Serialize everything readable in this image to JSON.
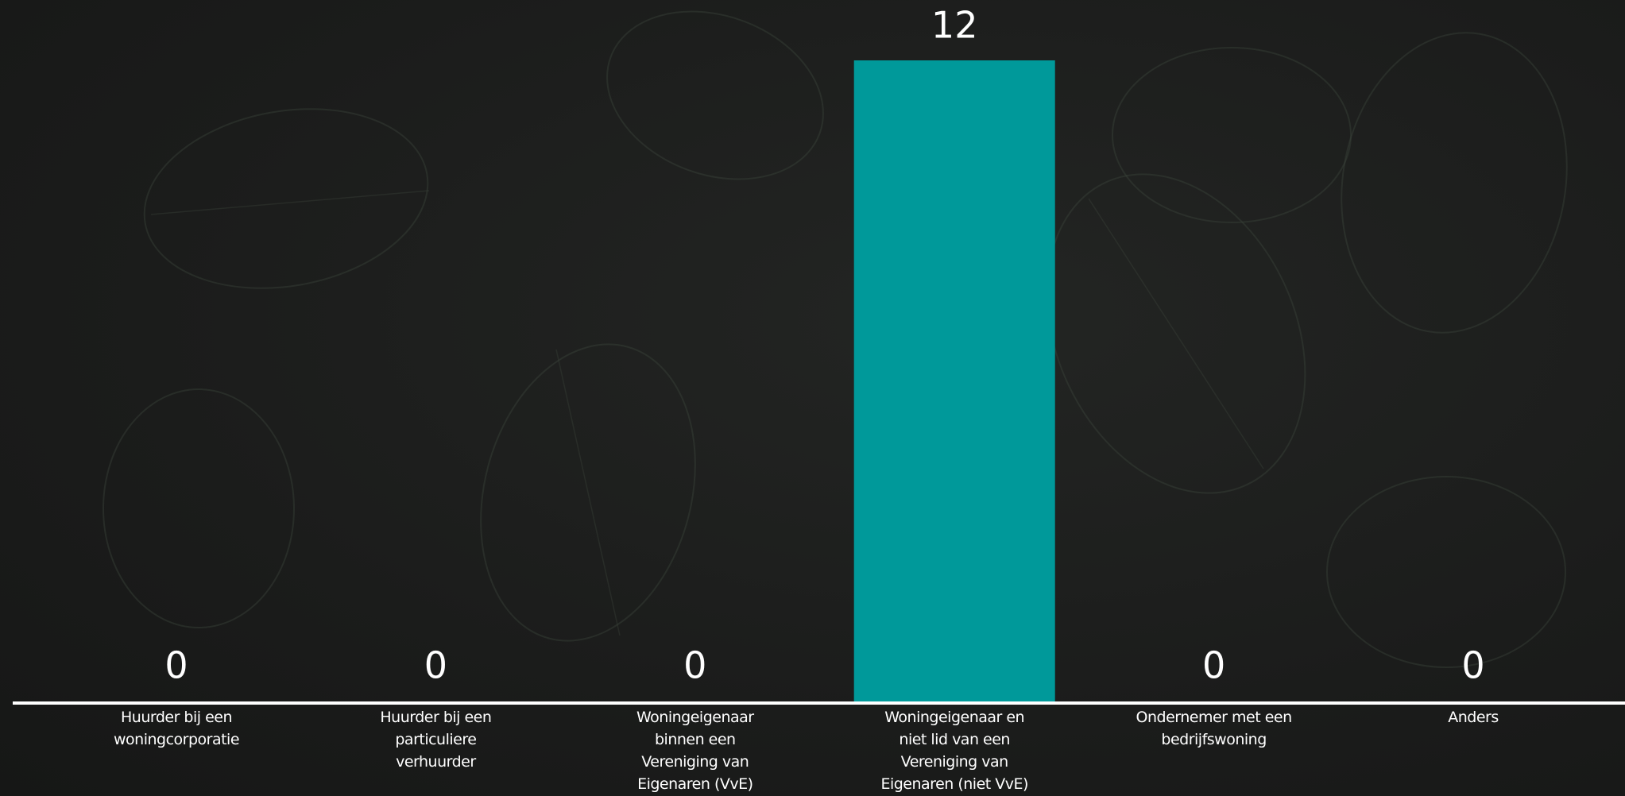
{
  "chart_data": {
    "type": "bar",
    "categories": [
      "Huurder bij een woningcorporatie",
      "Huurder bij een particuliere verhuurder",
      "Woningeigenaar binnen een Vereniging van Eigenaren (VvE)",
      "Woningeigenaar en niet lid van een Vereniging van Eigenaren (niet VvE)",
      "Ondernemer met een bedrijfswoning",
      "Anders"
    ],
    "values": [
      0,
      0,
      0,
      12,
      0,
      0
    ],
    "color": "#00999a"
  }
}
